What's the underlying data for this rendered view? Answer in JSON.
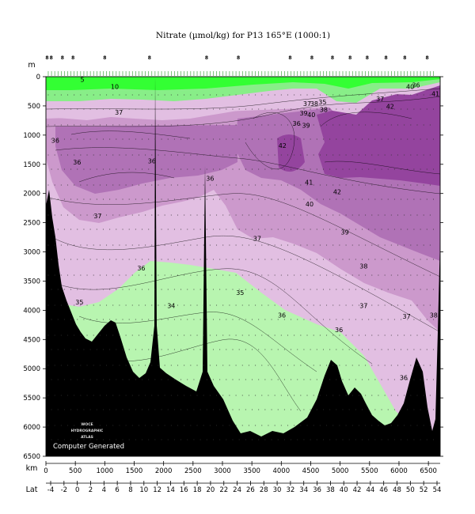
{
  "chart_data": {
    "type": "heatmap",
    "title": "Nitrate (µmol/kg) for P13 165°E (1000:1)",
    "depth_axis_label": "m",
    "distance_axis_label": "km",
    "latitude_axis_label": "Lat",
    "depth_ticks": [
      0,
      500,
      1000,
      1500,
      2000,
      2500,
      3000,
      3500,
      4000,
      4500,
      5000,
      5500,
      6000,
      6500
    ],
    "distance_ticks": [
      0,
      500,
      1000,
      1500,
      2000,
      2500,
      3000,
      3500,
      4000,
      4500,
      5000,
      5500,
      6000,
      6500
    ],
    "latitude_ticks": [
      -4,
      -2,
      0,
      2,
      4,
      6,
      8,
      10,
      12,
      14,
      16,
      18,
      20,
      22,
      24,
      26,
      28,
      30,
      32,
      34,
      36,
      38,
      40,
      42,
      44,
      46,
      48,
      50,
      52,
      54
    ],
    "ylim": [
      6500,
      0
    ],
    "xlim": [
      0,
      6700
    ],
    "station_labels": [
      {
        "text": "8",
        "x": 20
      },
      {
        "text": "8",
        "x": 90
      },
      {
        "text": "8",
        "x": 280
      },
      {
        "text": "8",
        "x": 460
      },
      {
        "text": "8",
        "x": 1000
      },
      {
        "text": "8",
        "x": 1760
      },
      {
        "text": "8",
        "x": 2730
      },
      {
        "text": "8",
        "x": 3270
      },
      {
        "text": "8",
        "x": 4150
      },
      {
        "text": "8",
        "x": 4520
      },
      {
        "text": "8",
        "x": 4870
      },
      {
        "text": "8",
        "x": 5170
      },
      {
        "text": "8",
        "x": 5460
      },
      {
        "text": "8",
        "x": 5780
      },
      {
        "text": "8",
        "x": 6100
      },
      {
        "text": "8",
        "x": 6480
      }
    ],
    "contour_labels": [
      {
        "text": "5",
        "x": 620,
        "depth": 50
      },
      {
        "text": "10",
        "x": 1170,
        "depth": 170
      },
      {
        "text": "37",
        "x": 1240,
        "depth": 610
      },
      {
        "text": "36",
        "x": 160,
        "depth": 1090
      },
      {
        "text": "36",
        "x": 530,
        "depth": 1460
      },
      {
        "text": "36",
        "x": 1800,
        "depth": 1440
      },
      {
        "text": "36",
        "x": 2790,
        "depth": 1740
      },
      {
        "text": "37",
        "x": 880,
        "depth": 2380
      },
      {
        "text": "37",
        "x": 3590,
        "depth": 2770
      },
      {
        "text": "36",
        "x": 1620,
        "depth": 3280
      },
      {
        "text": "35",
        "x": 570,
        "depth": 3860
      },
      {
        "text": "34",
        "x": 2130,
        "depth": 3920
      },
      {
        "text": "35",
        "x": 3300,
        "depth": 3700
      },
      {
        "text": "36",
        "x": 4010,
        "depth": 4080
      },
      {
        "text": "42",
        "x": 4020,
        "depth": 1180
      },
      {
        "text": "41",
        "x": 4470,
        "depth": 1810
      },
      {
        "text": "40",
        "x": 4480,
        "depth": 2180
      },
      {
        "text": "42",
        "x": 4950,
        "depth": 1970
      },
      {
        "text": "39",
        "x": 5080,
        "depth": 2660
      },
      {
        "text": "38",
        "x": 5400,
        "depth": 3240
      },
      {
        "text": "37",
        "x": 5400,
        "depth": 3920
      },
      {
        "text": "36",
        "x": 4980,
        "depth": 4330
      },
      {
        "text": "37",
        "x": 6130,
        "depth": 4100
      },
      {
        "text": "38",
        "x": 6590,
        "depth": 4080
      },
      {
        "text": "36",
        "x": 6080,
        "depth": 5150
      },
      {
        "text": "40",
        "x": 6190,
        "depth": 170
      },
      {
        "text": "36",
        "x": 6290,
        "depth": 140
      },
      {
        "text": "41",
        "x": 6620,
        "depth": 290
      },
      {
        "text": "37",
        "x": 5680,
        "depth": 380
      },
      {
        "text": "42",
        "x": 5850,
        "depth": 510
      },
      {
        "text": "36",
        "x": 4260,
        "depth": 800
      },
      {
        "text": "39",
        "x": 4420,
        "depth": 830
      },
      {
        "text": "37",
        "x": 4440,
        "depth": 460
      },
      {
        "text": "38",
        "x": 4560,
        "depth": 460
      },
      {
        "text": "35",
        "x": 4700,
        "depth": 430
      },
      {
        "text": "38",
        "x": 4720,
        "depth": 560
      },
      {
        "text": "39",
        "x": 4380,
        "depth": 620
      },
      {
        "text": "40",
        "x": 4510,
        "depth": 650
      }
    ]
  },
  "watermark": [
    "WOCE",
    "HYDROGRAPHIC",
    "ATLAS"
  ],
  "footer_note": "Computer Generated",
  "colors": {
    "green_bright": "#33ff33",
    "green_mid": "#88ee88",
    "green_light": "#b8f5b0",
    "lilac_light": "#e2bfe2",
    "lilac_mid": "#cc99cc",
    "purple_mid": "#b072b6",
    "purple_dark": "#94449e",
    "bottom": "#000000"
  }
}
